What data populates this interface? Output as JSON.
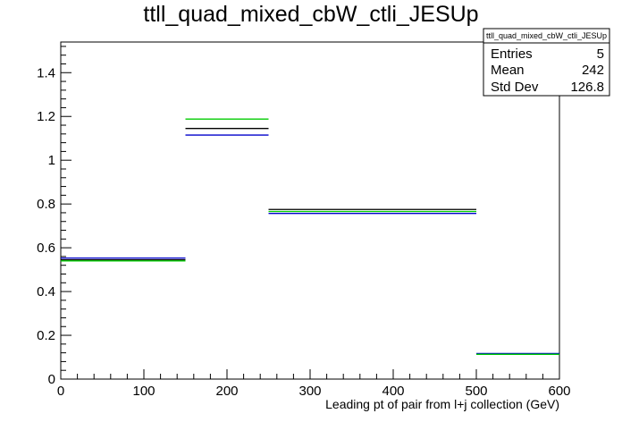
{
  "chart_data": {
    "type": "line",
    "title": "ttll_quad_mixed_cbW_ctli_JESUp",
    "xlabel": "Leading pt of pair from l+j collection (GeV)",
    "ylabel": "",
    "xlim": [
      0,
      600
    ],
    "ylim": [
      0,
      1.54
    ],
    "x_ticks": [
      0,
      100,
      200,
      300,
      400,
      500,
      600
    ],
    "y_ticks": [
      0,
      0.2,
      0.4,
      0.6,
      0.8,
      1,
      1.2,
      1.4
    ],
    "bin_edges": [
      0,
      150,
      250,
      500,
      600
    ],
    "series": [
      {
        "color": "#000000",
        "values": [
          0.545,
          1.145,
          0.775,
          0.115
        ]
      },
      {
        "color": "#0000cc",
        "values": [
          0.553,
          1.115,
          0.757,
          0.117
        ]
      },
      {
        "color": "#00cc00",
        "values": [
          0.54,
          1.188,
          0.766,
          0.113
        ]
      }
    ],
    "grid": false
  },
  "stats": {
    "title": "ttll_quad_mixed_cbW_ctli_JESUp",
    "rows": [
      {
        "label": "Entries",
        "value": "5"
      },
      {
        "label": "Mean",
        "value": "242"
      },
      {
        "label": "Std Dev",
        "value": "126.8"
      }
    ]
  }
}
